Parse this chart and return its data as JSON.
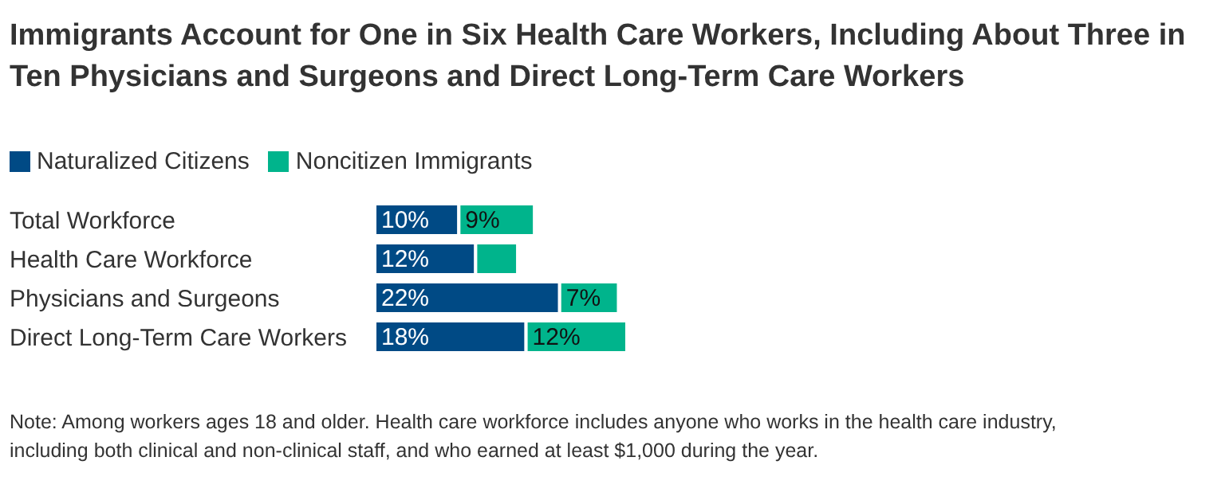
{
  "chart_data": {
    "type": "bar",
    "orientation": "horizontal",
    "stacked": true,
    "title": "Immigrants Account for One in Six Health Care Workers, Including About Three in Ten Physicians and Surgeons and Direct Long-Term Care Workers",
    "categories": [
      "Total Workforce",
      "Health Care Workforce",
      "Physicians and Surgeons",
      "Direct Long-Term Care Workers"
    ],
    "series": [
      {
        "name": "Naturalized Citizens",
        "color": "#004a85",
        "values": [
          10,
          12,
          22,
          18
        ],
        "value_labels": [
          "10%",
          "12%",
          "22%",
          "18%"
        ]
      },
      {
        "name": "Noncitizen Immigrants",
        "color": "#00b48c",
        "values": [
          9,
          5,
          7,
          12
        ],
        "value_labels": [
          "9%",
          null,
          "7%",
          "12%"
        ]
      }
    ],
    "legend": "top left",
    "annotations": [
      "Note: Among workers ages 18 and older. Health care workforce includes anyone who works in the health care industry, including both clinical and non-clinical staff, and who earned at least $1,000 during the year."
    ]
  }
}
